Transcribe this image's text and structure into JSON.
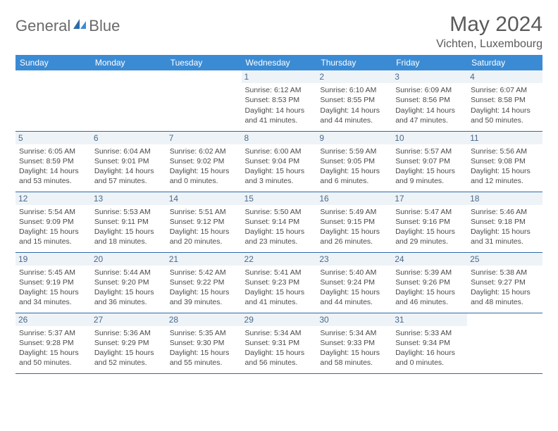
{
  "brand": {
    "name1": "General",
    "name2": "Blue"
  },
  "title": "May 2024",
  "location": "Vichten, Luxembourg",
  "accent_color": "#3b8bd4",
  "grid_border_color": "#2f6aa8",
  "daynum_bg": "#eef3f8",
  "text_color": "#4a4a4a",
  "weekdays": [
    "Sunday",
    "Monday",
    "Tuesday",
    "Wednesday",
    "Thursday",
    "Friday",
    "Saturday"
  ],
  "weeks": [
    [
      null,
      null,
      null,
      {
        "n": "1",
        "sr": "6:12 AM",
        "ss": "8:53 PM",
        "dl": "14 hours and 41 minutes."
      },
      {
        "n": "2",
        "sr": "6:10 AM",
        "ss": "8:55 PM",
        "dl": "14 hours and 44 minutes."
      },
      {
        "n": "3",
        "sr": "6:09 AM",
        "ss": "8:56 PM",
        "dl": "14 hours and 47 minutes."
      },
      {
        "n": "4",
        "sr": "6:07 AM",
        "ss": "8:58 PM",
        "dl": "14 hours and 50 minutes."
      }
    ],
    [
      {
        "n": "5",
        "sr": "6:05 AM",
        "ss": "8:59 PM",
        "dl": "14 hours and 53 minutes."
      },
      {
        "n": "6",
        "sr": "6:04 AM",
        "ss": "9:01 PM",
        "dl": "14 hours and 57 minutes."
      },
      {
        "n": "7",
        "sr": "6:02 AM",
        "ss": "9:02 PM",
        "dl": "15 hours and 0 minutes."
      },
      {
        "n": "8",
        "sr": "6:00 AM",
        "ss": "9:04 PM",
        "dl": "15 hours and 3 minutes."
      },
      {
        "n": "9",
        "sr": "5:59 AM",
        "ss": "9:05 PM",
        "dl": "15 hours and 6 minutes."
      },
      {
        "n": "10",
        "sr": "5:57 AM",
        "ss": "9:07 PM",
        "dl": "15 hours and 9 minutes."
      },
      {
        "n": "11",
        "sr": "5:56 AM",
        "ss": "9:08 PM",
        "dl": "15 hours and 12 minutes."
      }
    ],
    [
      {
        "n": "12",
        "sr": "5:54 AM",
        "ss": "9:09 PM",
        "dl": "15 hours and 15 minutes."
      },
      {
        "n": "13",
        "sr": "5:53 AM",
        "ss": "9:11 PM",
        "dl": "15 hours and 18 minutes."
      },
      {
        "n": "14",
        "sr": "5:51 AM",
        "ss": "9:12 PM",
        "dl": "15 hours and 20 minutes."
      },
      {
        "n": "15",
        "sr": "5:50 AM",
        "ss": "9:14 PM",
        "dl": "15 hours and 23 minutes."
      },
      {
        "n": "16",
        "sr": "5:49 AM",
        "ss": "9:15 PM",
        "dl": "15 hours and 26 minutes."
      },
      {
        "n": "17",
        "sr": "5:47 AM",
        "ss": "9:16 PM",
        "dl": "15 hours and 29 minutes."
      },
      {
        "n": "18",
        "sr": "5:46 AM",
        "ss": "9:18 PM",
        "dl": "15 hours and 31 minutes."
      }
    ],
    [
      {
        "n": "19",
        "sr": "5:45 AM",
        "ss": "9:19 PM",
        "dl": "15 hours and 34 minutes."
      },
      {
        "n": "20",
        "sr": "5:44 AM",
        "ss": "9:20 PM",
        "dl": "15 hours and 36 minutes."
      },
      {
        "n": "21",
        "sr": "5:42 AM",
        "ss": "9:22 PM",
        "dl": "15 hours and 39 minutes."
      },
      {
        "n": "22",
        "sr": "5:41 AM",
        "ss": "9:23 PM",
        "dl": "15 hours and 41 minutes."
      },
      {
        "n": "23",
        "sr": "5:40 AM",
        "ss": "9:24 PM",
        "dl": "15 hours and 44 minutes."
      },
      {
        "n": "24",
        "sr": "5:39 AM",
        "ss": "9:26 PM",
        "dl": "15 hours and 46 minutes."
      },
      {
        "n": "25",
        "sr": "5:38 AM",
        "ss": "9:27 PM",
        "dl": "15 hours and 48 minutes."
      }
    ],
    [
      {
        "n": "26",
        "sr": "5:37 AM",
        "ss": "9:28 PM",
        "dl": "15 hours and 50 minutes."
      },
      {
        "n": "27",
        "sr": "5:36 AM",
        "ss": "9:29 PM",
        "dl": "15 hours and 52 minutes."
      },
      {
        "n": "28",
        "sr": "5:35 AM",
        "ss": "9:30 PM",
        "dl": "15 hours and 55 minutes."
      },
      {
        "n": "29",
        "sr": "5:34 AM",
        "ss": "9:31 PM",
        "dl": "15 hours and 56 minutes."
      },
      {
        "n": "30",
        "sr": "5:34 AM",
        "ss": "9:33 PM",
        "dl": "15 hours and 58 minutes."
      },
      {
        "n": "31",
        "sr": "5:33 AM",
        "ss": "9:34 PM",
        "dl": "16 hours and 0 minutes."
      },
      null
    ]
  ],
  "labels": {
    "sunrise": "Sunrise:",
    "sunset": "Sunset:",
    "daylight": "Daylight:"
  }
}
